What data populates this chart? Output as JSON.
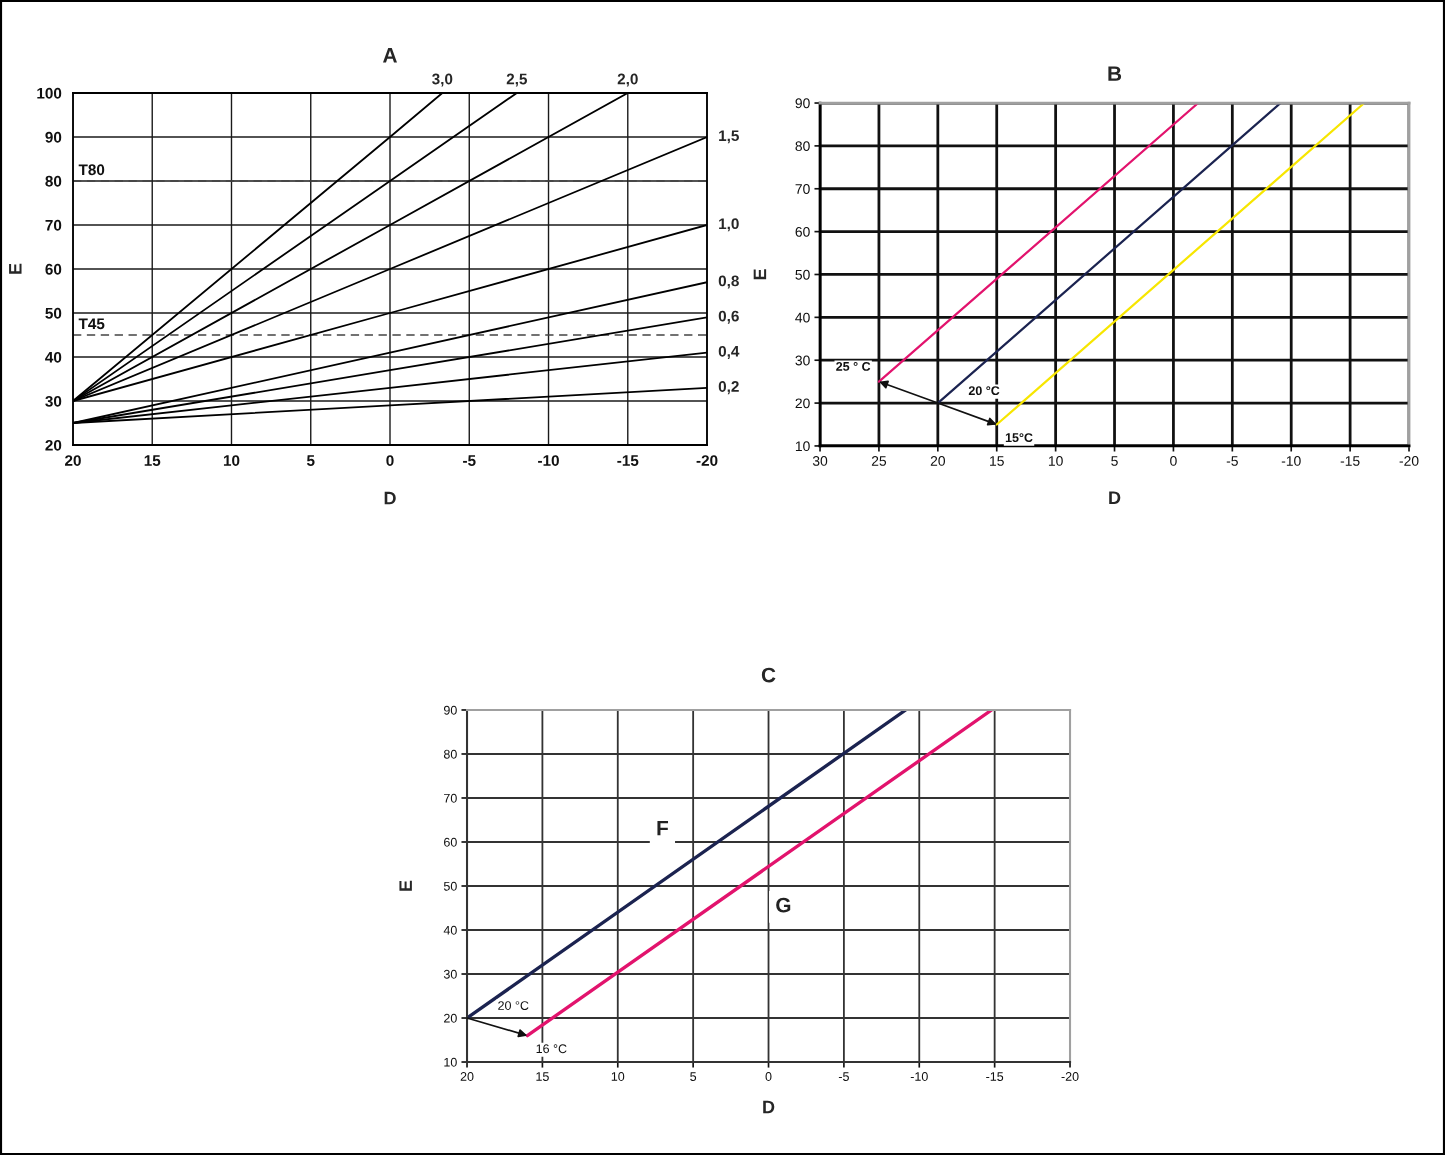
{
  "chart_data": [
    {
      "type": "line",
      "title": "A",
      "xlabel": "D",
      "ylabel": "E",
      "xlim": [
        20,
        -20
      ],
      "ylim": [
        20,
        100
      ],
      "xticks": [
        20,
        15,
        10,
        5,
        0,
        -5,
        -10,
        -15,
        -20
      ],
      "yticks": [
        20,
        30,
        40,
        50,
        60,
        70,
        80,
        90,
        100
      ],
      "grid": true,
      "series": [
        {
          "name": "3,0",
          "color": "#000000",
          "x": [
            20,
            0,
            -3.3
          ],
          "values": [
            30,
            90,
            100
          ]
        },
        {
          "name": "2,5",
          "color": "#000000",
          "x": [
            20,
            0,
            -8
          ],
          "values": [
            30,
            80,
            100
          ]
        },
        {
          "name": "2,0",
          "color": "#000000",
          "x": [
            20,
            0,
            -15
          ],
          "values": [
            30,
            70,
            100
          ]
        },
        {
          "name": "1,5",
          "color": "#000000",
          "x": [
            20,
            0,
            -20
          ],
          "values": [
            30,
            60,
            90
          ]
        },
        {
          "name": "1,0",
          "color": "#000000",
          "x": [
            20,
            0,
            -20
          ],
          "values": [
            30,
            50,
            70
          ]
        },
        {
          "name": "0,8",
          "color": "#000000",
          "x": [
            20,
            0,
            -20
          ],
          "values": [
            25,
            41,
            57
          ]
        },
        {
          "name": "0,6",
          "color": "#000000",
          "x": [
            20,
            0,
            -20
          ],
          "values": [
            25,
            37,
            49
          ]
        },
        {
          "name": "0,4",
          "color": "#000000",
          "x": [
            20,
            0,
            -20
          ],
          "values": [
            25,
            33,
            41
          ]
        },
        {
          "name": "0,2",
          "color": "#000000",
          "x": [
            20,
            0,
            -20
          ],
          "values": [
            25,
            29,
            33
          ]
        }
      ],
      "ref_lines": [
        {
          "axis": "y",
          "value": 80,
          "label": "T80",
          "color": "#444444",
          "line_style": "dashed"
        },
        {
          "axis": "y",
          "value": 45,
          "label": "T45",
          "color": "#444444",
          "line_style": "dashed"
        }
      ]
    },
    {
      "type": "line",
      "title": "B",
      "xlabel": "D",
      "ylabel": "E",
      "xlim": [
        30,
        -20
      ],
      "ylim": [
        10,
        90
      ],
      "xticks": [
        30,
        25,
        20,
        15,
        10,
        5,
        0,
        -5,
        -10,
        -15,
        -20
      ],
      "yticks": [
        10,
        20,
        30,
        40,
        50,
        60,
        70,
        80,
        90
      ],
      "grid": true,
      "series": [
        {
          "color": "#1b2350",
          "x": [
            20,
            -9.1
          ],
          "values": [
            20,
            90
          ]
        },
        {
          "color": "#e2136d",
          "x": [
            25,
            -2.1
          ],
          "values": [
            25,
            90
          ]
        },
        {
          "color": "#f7e600",
          "x": [
            15,
            -16.2
          ],
          "values": [
            15,
            90
          ]
        }
      ],
      "annotations": [
        {
          "text": "20 °C",
          "x": 20,
          "y": 20
        },
        {
          "text": "25 ° C",
          "x": 25,
          "y": 25
        },
        {
          "text": "15°C",
          "x": 15,
          "y": 15
        }
      ]
    },
    {
      "type": "line",
      "title": "C",
      "xlabel": "D",
      "ylabel": "E",
      "xlim": [
        20,
        -20
      ],
      "ylim": [
        10,
        90
      ],
      "xticks": [
        20,
        15,
        10,
        5,
        0,
        -5,
        -10,
        -15,
        -20
      ],
      "yticks": [
        10,
        20,
        30,
        40,
        50,
        60,
        70,
        80,
        90
      ],
      "grid": true,
      "series": [
        {
          "name": "F",
          "color": "#1b2350",
          "x": [
            20,
            -9.1
          ],
          "values": [
            20,
            90
          ]
        },
        {
          "name": "G",
          "color": "#e2136d",
          "x": [
            16,
            -14.8
          ],
          "values": [
            16,
            90
          ]
        }
      ],
      "annotations": [
        {
          "text": "20 °C",
          "x": 20,
          "y": 20
        },
        {
          "text": "16 °C",
          "x": 16,
          "y": 16
        }
      ]
    }
  ]
}
